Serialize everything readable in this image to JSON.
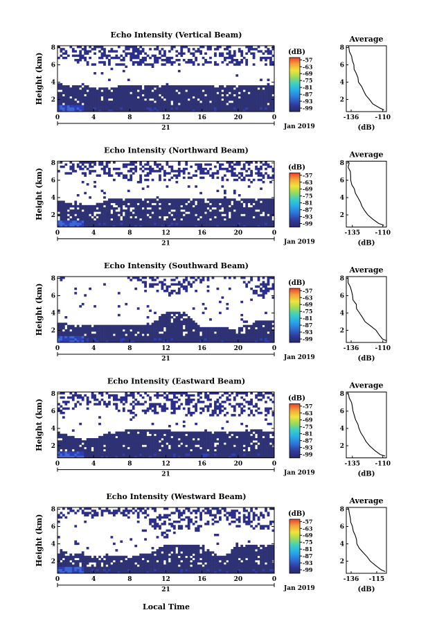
{
  "figure": {
    "xlabel": "Local Time",
    "date_label": "Jan 2019",
    "day_label": "21",
    "height_label": "Height (km)",
    "cb_unit": "(dB)",
    "avg_title": "Average",
    "avg_xlabel": "(dB)"
  },
  "chart_data": [
    {
      "type": "heatmap",
      "title": "Echo Intensity (Vertical Beam)",
      "xlabel": "Local Time",
      "ylabel": "Height (km)",
      "x_ticks": [
        "0",
        "4",
        "8",
        "12",
        "16",
        "20",
        "0"
      ],
      "y_ticks": [
        "2",
        "4",
        "6",
        "8"
      ],
      "xlim": [
        0,
        24
      ],
      "ylim": [
        0.6,
        8.2
      ],
      "colorbar": {
        "unit": "(dB)",
        "ticks": [
          "-57",
          "-63",
          "-69",
          "-75",
          "-81",
          "-87",
          "-93",
          "-99"
        ],
        "range": [
          -102,
          -55
        ]
      },
      "layers": {
        "dense_top_km": [
          3.8,
          3.6,
          3.5,
          3.5,
          3.6,
          3.6,
          3.6,
          3.6,
          3.7,
          3.6,
          3.6,
          3.7,
          3.7
        ],
        "patchy_top_km": 8.2,
        "patchy_bottom_km": [
          6.5,
          6.3,
          5.8,
          5.8,
          5.9,
          6.0,
          6.0,
          6.1,
          6.0,
          5.9,
          5.8,
          5.9,
          6.0
        ],
        "gap_frac": 0.1
      },
      "average_profile": {
        "title": "Average",
        "xlabel": "(dB)",
        "x_ticks": [
          "-136",
          "-110"
        ],
        "y_ticks": [
          "2",
          "4",
          "6",
          "8"
        ],
        "xlim": [
          -140,
          -107
        ],
        "ylim": [
          0.6,
          8.2
        ],
        "height_km": [
          0.8,
          1.0,
          1.5,
          2.0,
          2.5,
          3.0,
          3.5,
          4.0,
          4.5,
          5.0,
          5.5,
          6.0,
          6.5,
          7.0,
          7.5,
          8.0,
          8.2
        ],
        "value_db": [
          -109,
          -112,
          -118,
          -121,
          -124,
          -126,
          -127,
          -130,
          -130,
          -132,
          -133,
          -134,
          -135,
          -136,
          -137,
          -138,
          -138
        ]
      }
    },
    {
      "type": "heatmap",
      "title": "Echo Intensity (Northward Beam)",
      "xlabel": "Local Time",
      "ylabel": "Height (km)",
      "x_ticks": [
        "0",
        "4",
        "8",
        "12",
        "16",
        "20",
        "0"
      ],
      "y_ticks": [
        "2",
        "4",
        "6",
        "8"
      ],
      "xlim": [
        0,
        24
      ],
      "ylim": [
        0.6,
        8.2
      ],
      "colorbar": {
        "unit": "(dB)",
        "ticks": [
          "-57",
          "-63",
          "-69",
          "-75",
          "-81",
          "-87",
          "-93",
          "-99"
        ],
        "range": [
          -102,
          -55
        ]
      },
      "layers": {
        "dense_top_km": [
          3.6,
          3.3,
          3.2,
          3.9,
          4.0,
          3.9,
          3.9,
          4.0,
          4.0,
          3.9,
          4.0,
          4.0,
          3.9
        ],
        "patchy_top_km": 8.2,
        "patchy_bottom_km": [
          7.0,
          6.5,
          6.6,
          6.3,
          5.8,
          5.7,
          6.0,
          6.1,
          6.2,
          5.9,
          6.0,
          5.6,
          6.0
        ],
        "gap_frac": 0.16
      },
      "average_profile": {
        "title": "Average",
        "xlabel": "(dB)",
        "x_ticks": [
          "-135",
          "-110"
        ],
        "y_ticks": [
          "2",
          "4",
          "6",
          "8"
        ],
        "xlim": [
          -140,
          -107
        ],
        "ylim": [
          0.6,
          8.2
        ],
        "height_km": [
          0.8,
          1.0,
          1.5,
          2.0,
          2.5,
          3.0,
          3.5,
          4.0,
          4.5,
          5.0,
          5.5,
          6.0,
          6.5,
          7.0,
          7.5,
          8.0,
          8.2
        ],
        "value_db": [
          -109,
          -113,
          -118,
          -122,
          -125,
          -127,
          -129,
          -131,
          -132,
          -133,
          -135,
          -136,
          -136,
          -137,
          -138,
          -138,
          -139
        ]
      }
    },
    {
      "type": "heatmap",
      "title": "Echo Intensity (Southward Beam)",
      "xlabel": "Local Time",
      "ylabel": "Height (km)",
      "x_ticks": [
        "0",
        "4",
        "8",
        "12",
        "16",
        "20",
        "0"
      ],
      "y_ticks": [
        "2",
        "4",
        "6",
        "8"
      ],
      "xlim": [
        0,
        24
      ],
      "ylim": [
        0.6,
        8.2
      ],
      "colorbar": {
        "unit": "(dB)",
        "ticks": [
          "-57",
          "-63",
          "-69",
          "-75",
          "-81",
          "-87",
          "-93",
          "-99"
        ],
        "range": [
          -102,
          -55
        ]
      },
      "layers": {
        "dense_top_km": [
          2.9,
          2.6,
          2.6,
          2.6,
          2.6,
          2.5,
          4.1,
          4.1,
          2.4,
          2.3,
          2.2,
          3.0,
          3.2
        ],
        "patchy_top_km": 8.2,
        "patchy_bottom_km": [
          8.0,
          8.2,
          8.2,
          8.2,
          8.2,
          7.0,
          6.0,
          6.2,
          7.5,
          8.2,
          7.8,
          6.0,
          5.6
        ],
        "gap_frac": 0.1
      },
      "average_profile": {
        "title": "Average",
        "xlabel": "(dB)",
        "x_ticks": [
          "-136",
          "-110"
        ],
        "y_ticks": [
          "2",
          "4",
          "6",
          "8"
        ],
        "xlim": [
          -140,
          -107
        ],
        "ylim": [
          0.6,
          8.2
        ],
        "height_km": [
          0.8,
          1.0,
          1.5,
          2.0,
          2.5,
          3.0,
          3.5,
          4.0,
          4.5,
          5.0,
          5.5,
          6.0,
          6.5,
          7.0,
          7.5,
          8.0,
          8.2
        ],
        "value_db": [
          -107,
          -110,
          -113,
          -116,
          -120,
          -124,
          -127,
          -129,
          -131,
          -132,
          -134,
          -135,
          -136,
          -137,
          -138,
          -138,
          -139
        ]
      }
    },
    {
      "type": "heatmap",
      "title": "Echo Intensity (Eastward Beam)",
      "xlabel": "Local Time",
      "ylabel": "Height (km)",
      "x_ticks": [
        "0",
        "4",
        "8",
        "12",
        "16",
        "20",
        "0"
      ],
      "y_ticks": [
        "2",
        "4",
        "6",
        "8"
      ],
      "xlim": [
        0,
        24
      ],
      "ylim": [
        0.6,
        8.2
      ],
      "colorbar": {
        "unit": "(dB)",
        "ticks": [
          "-57",
          "-63",
          "-69",
          "-75",
          "-81",
          "-87",
          "-93",
          "-99"
        ],
        "range": [
          -102,
          -55
        ]
      },
      "layers": {
        "dense_top_km": [
          3.6,
          2.9,
          2.8,
          3.7,
          3.8,
          3.8,
          3.8,
          3.7,
          3.7,
          3.7,
          3.7,
          3.8,
          3.7
        ],
        "patchy_top_km": 8.2,
        "patchy_bottom_km": [
          5.4,
          6.5,
          6.7,
          6.2,
          5.5,
          5.6,
          5.7,
          5.5,
          5.6,
          5.4,
          5.5,
          5.5,
          5.3
        ],
        "gap_frac": 0.12
      },
      "average_profile": {
        "title": "Average",
        "xlabel": "(dB)",
        "x_ticks": [
          "-135",
          "-110"
        ],
        "y_ticks": [
          "2",
          "4",
          "6",
          "8"
        ],
        "xlim": [
          -140,
          -107
        ],
        "ylim": [
          0.6,
          8.2
        ],
        "height_km": [
          0.8,
          1.0,
          1.5,
          2.0,
          2.5,
          3.0,
          3.5,
          4.0,
          4.5,
          5.0,
          5.5,
          6.0,
          6.5,
          7.0,
          7.5,
          8.0,
          8.2
        ],
        "value_db": [
          -108,
          -112,
          -117,
          -121,
          -124,
          -126,
          -128,
          -130,
          -131,
          -132,
          -133,
          -134,
          -135,
          -136,
          -137,
          -138,
          -139
        ]
      }
    },
    {
      "type": "heatmap",
      "title": "Echo Intensity (Westward Beam)",
      "xlabel": "Local Time",
      "ylabel": "Height (km)",
      "x_ticks": [
        "0",
        "4",
        "8",
        "12",
        "16",
        "20",
        "0"
      ],
      "y_ticks": [
        "2",
        "4",
        "6",
        "8"
      ],
      "xlim": [
        0,
        24
      ],
      "ylim": [
        0.6,
        8.2
      ],
      "colorbar": {
        "unit": "(dB)",
        "ticks": [
          "-57",
          "-63",
          "-69",
          "-75",
          "-81",
          "-87",
          "-93",
          "-99"
        ],
        "range": [
          -102,
          -55
        ]
      },
      "layers": {
        "dense_top_km": [
          3.2,
          2.8,
          2.7,
          2.6,
          2.7,
          2.8,
          4.0,
          4.0,
          3.9,
          2.5,
          3.9,
          3.9,
          3.8
        ],
        "patchy_top_km": 8.2,
        "patchy_bottom_km": [
          6.5,
          7.3,
          7.0,
          7.2,
          7.0,
          6.5,
          4.6,
          5.5,
          5.8,
          6.5,
          6.0,
          5.8,
          5.4
        ],
        "gap_frac": 0.14
      },
      "average_profile": {
        "title": "Average",
        "xlabel": "(dB)",
        "x_ticks": [
          "-136",
          "-115"
        ],
        "y_ticks": [
          "2",
          "4",
          "6",
          "8"
        ],
        "xlim": [
          -140,
          -107
        ],
        "ylim": [
          0.6,
          8.2
        ],
        "height_km": [
          0.8,
          1.0,
          1.5,
          2.0,
          2.5,
          3.0,
          3.5,
          4.0,
          4.5,
          5.0,
          5.5,
          6.0,
          6.5,
          7.0,
          7.5,
          8.0,
          8.2
        ],
        "value_db": [
          -108,
          -111,
          -116,
          -120,
          -123,
          -126,
          -129,
          -131,
          -132,
          -133,
          -134,
          -135,
          -136,
          -137,
          -138,
          -138,
          -139
        ]
      }
    }
  ]
}
